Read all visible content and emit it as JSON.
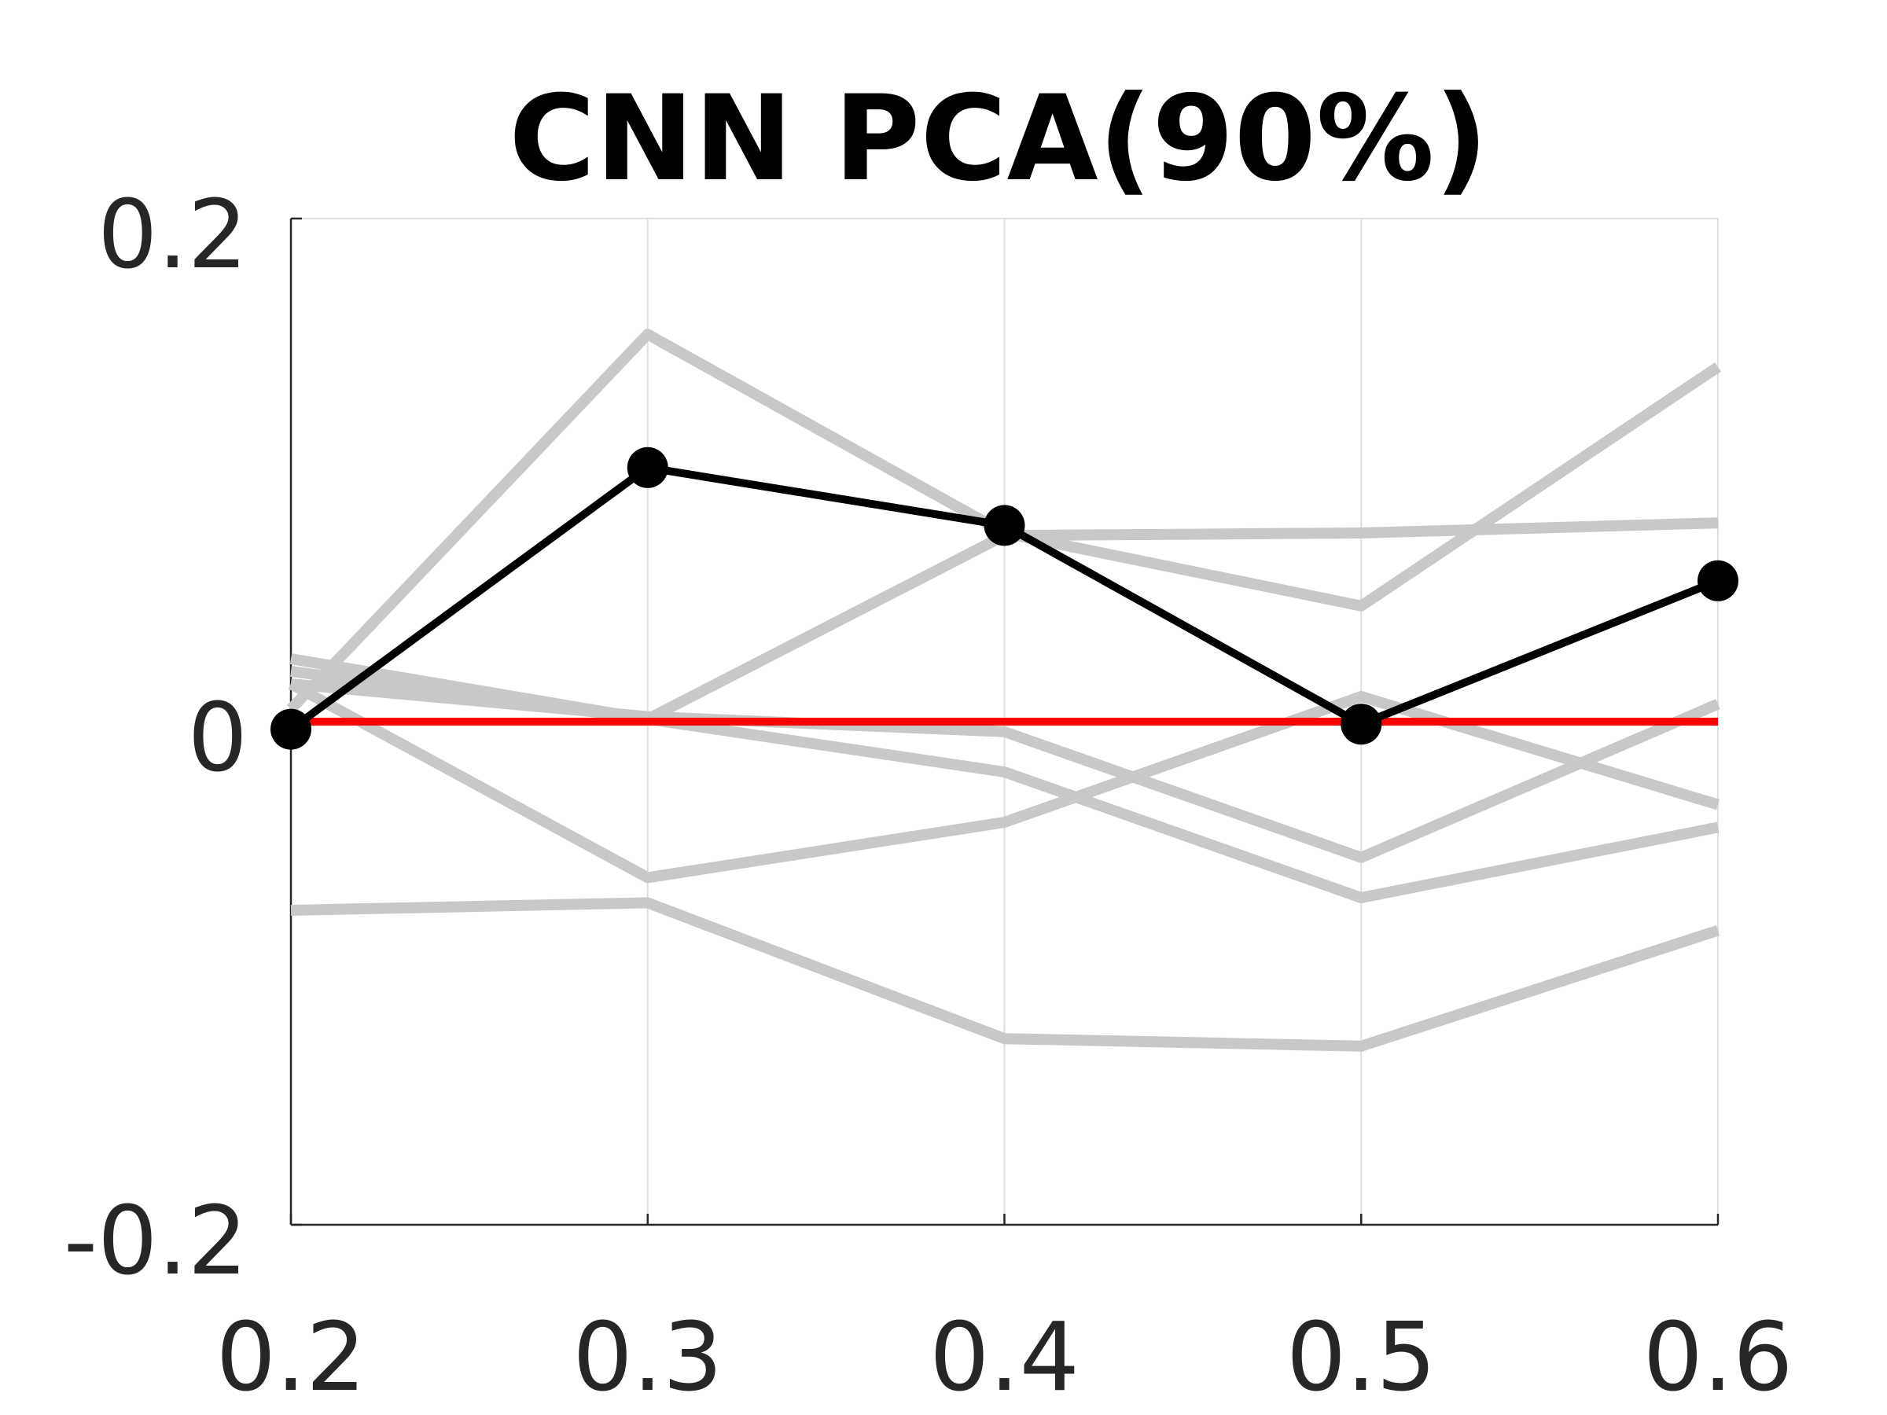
{
  "chart_data": {
    "type": "line",
    "title": "CNN PCA(90%)",
    "xlabel": "",
    "ylabel": "",
    "x": [
      0.2,
      0.3,
      0.4,
      0.5,
      0.6
    ],
    "x_tick_labels": [
      "0.2",
      "0.3",
      "0.4",
      "0.5",
      "0.6"
    ],
    "xlim": [
      0.2,
      0.6
    ],
    "y_ticks": [
      -0.2,
      0,
      0.2
    ],
    "y_tick_labels": [
      "-0.2",
      "0",
      "0.2"
    ],
    "ylim": [
      -0.2,
      0.2
    ],
    "grid": "vertical",
    "legend": "none",
    "series": [
      {
        "style": "gray",
        "values": [
          0.005,
          0.154,
          0.075,
          0.046,
          0.141
        ]
      },
      {
        "style": "gray",
        "values": [
          0.025,
          0.001,
          0.074,
          0.075,
          0.079
        ]
      },
      {
        "style": "gray",
        "values": [
          0.015,
          0.002,
          -0.004,
          -0.054,
          0.007
        ]
      },
      {
        "style": "gray",
        "values": [
          0.02,
          0.001,
          -0.02,
          -0.07,
          -0.042
        ]
      },
      {
        "style": "gray",
        "values": [
          0.015,
          -0.062,
          -0.04,
          0.01,
          -0.033
        ]
      },
      {
        "style": "gray",
        "values": [
          -0.075,
          -0.072,
          -0.126,
          -0.129,
          -0.083
        ]
      },
      {
        "style": "mean",
        "values": [
          -0.003,
          0.101,
          0.078,
          -0.001,
          0.056
        ]
      },
      {
        "style": "reference",
        "values": [
          0,
          0,
          0,
          0,
          0
        ]
      }
    ],
    "colors": {
      "gray": "#c8c8c8",
      "mean": "#000000",
      "reference": "#ff0000",
      "grid": "#dfdfdf",
      "axis": "#262626"
    }
  }
}
